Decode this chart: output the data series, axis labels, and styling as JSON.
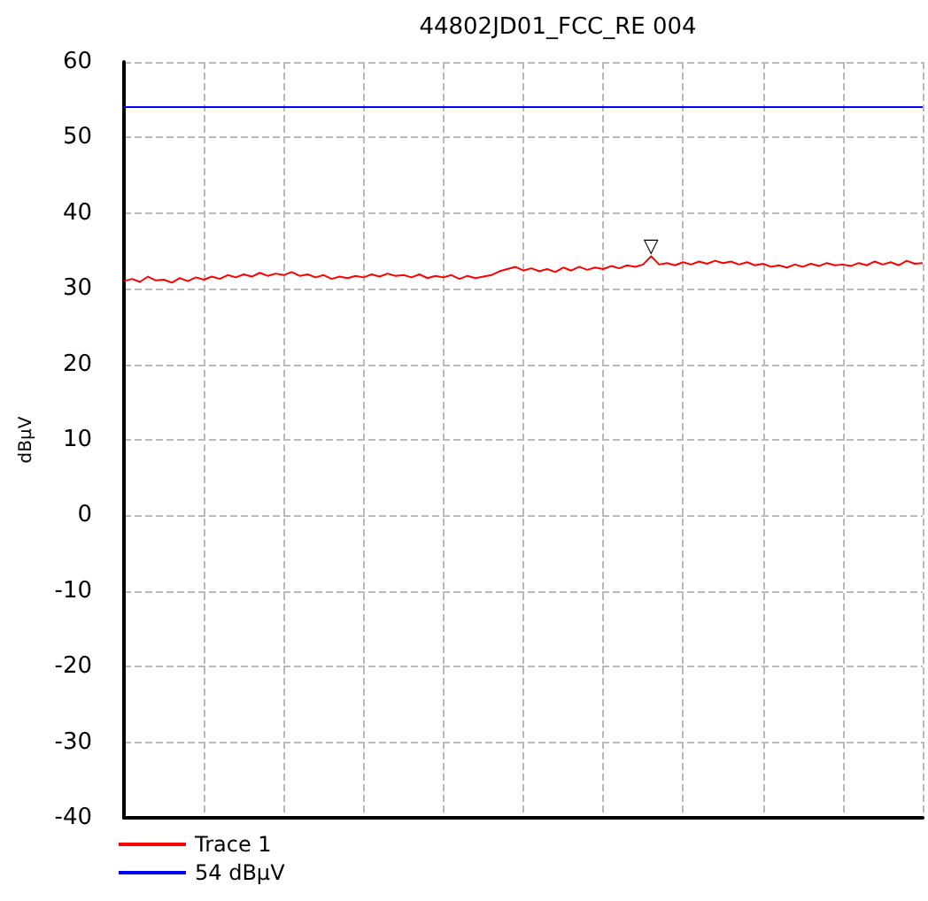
{
  "chart_data": {
    "type": "line",
    "title": "44802JD01_FCC_RE 004",
    "ylabel": "dBµV",
    "categories": [
      null,
      null,
      null,
      null,
      null,
      null,
      null,
      null,
      null,
      null,
      null,
      null,
      null,
      null,
      null,
      null,
      null,
      null,
      null,
      null,
      null,
      null,
      null,
      null,
      null,
      null,
      null,
      null,
      null,
      null,
      null,
      null,
      null,
      null,
      null,
      null,
      null,
      null,
      null,
      null,
      null,
      null,
      null,
      null,
      null,
      null,
      null,
      null,
      null,
      null,
      null,
      null,
      null,
      null,
      null,
      null,
      null,
      null,
      null,
      null,
      null,
      null,
      null,
      null,
      null,
      null,
      null,
      null,
      null,
      null,
      null,
      null,
      null,
      null,
      null,
      null,
      null,
      null,
      null,
      null,
      null,
      null,
      null,
      null,
      null,
      null,
      null,
      null,
      null,
      null,
      null,
      null,
      null,
      null,
      null,
      null,
      null,
      null,
      null,
      null,
      null
    ],
    "ylim": [
      -40,
      60
    ],
    "yticks": [
      -40,
      -30,
      -20,
      -10,
      0,
      10,
      20,
      30,
      40,
      50,
      60
    ],
    "grid": true,
    "legend": "bottom left",
    "marker": "none",
    "line_style": "solid",
    "series": [
      {
        "name": "Trace 1",
        "color": "#ff0000",
        "values": [
          31.0,
          31.3,
          30.9,
          31.6,
          31.1,
          31.2,
          30.8,
          31.4,
          31.0,
          31.5,
          31.2,
          31.6,
          31.3,
          31.8,
          31.5,
          31.9,
          31.6,
          32.1,
          31.7,
          32.0,
          31.8,
          32.2,
          31.7,
          31.9,
          31.5,
          31.8,
          31.3,
          31.6,
          31.4,
          31.7,
          31.5,
          31.9,
          31.6,
          32.0,
          31.7,
          31.8,
          31.5,
          31.9,
          31.4,
          31.7,
          31.5,
          31.8,
          31.3,
          31.7,
          31.4,
          31.6,
          31.8,
          32.3,
          32.6,
          32.9,
          32.4,
          32.7,
          32.3,
          32.6,
          32.2,
          32.8,
          32.4,
          32.9,
          32.5,
          32.8,
          32.6,
          33.0,
          32.7,
          33.1,
          32.9,
          33.2,
          34.3,
          33.2,
          33.4,
          33.1,
          33.5,
          33.2,
          33.6,
          33.3,
          33.7,
          33.4,
          33.6,
          33.2,
          33.5,
          33.1,
          33.3,
          32.9,
          33.1,
          32.8,
          33.2,
          32.9,
          33.3,
          33.0,
          33.4,
          33.1,
          33.2,
          33.0,
          33.4,
          33.1,
          33.6,
          33.2,
          33.5,
          33.1,
          33.7,
          33.3,
          33.4
        ]
      }
    ],
    "ref_lines": [
      {
        "axis": "y",
        "value": 54,
        "label": "54 dBµV",
        "color": "#0000ff",
        "line_style": "solid"
      }
    ],
    "annotations": [
      "▽"
    ]
  }
}
